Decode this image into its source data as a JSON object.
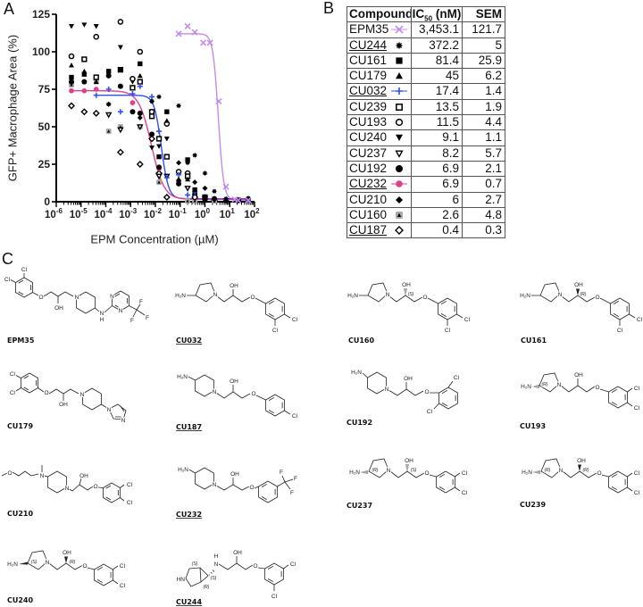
{
  "panels": {
    "a": "A",
    "b": "B",
    "c": "C"
  },
  "table": {
    "headers": {
      "compound": "Compound",
      "ic50_main": "IC",
      "ic50_sub": "50",
      "ic50_unit": " (nM)",
      "sem": "SEM"
    },
    "rows": [
      {
        "compound": "EPM35",
        "underlined": false,
        "marker": "x-line",
        "color": "#c58be8",
        "ic50": "3,453.1",
        "sem": "121.7"
      },
      {
        "compound": "CU244",
        "underlined": true,
        "marker": "asterisk",
        "color": "#000000",
        "ic50": "372.2",
        "sem": "5"
      },
      {
        "compound": "CU161",
        "underlined": false,
        "marker": "square-filled",
        "color": "#000000",
        "ic50": "81.4",
        "sem": "25.9"
      },
      {
        "compound": "CU179",
        "underlined": false,
        "marker": "triangle-filled",
        "color": "#000000",
        "ic50": "45",
        "sem": "6.2"
      },
      {
        "compound": "CU032",
        "underlined": true,
        "marker": "plus-line",
        "color": "#3050f0",
        "ic50": "17.4",
        "sem": "1.4"
      },
      {
        "compound": "CU239",
        "underlined": false,
        "marker": "square-open",
        "color": "#000000",
        "ic50": "13.5",
        "sem": "1.9"
      },
      {
        "compound": "CU193",
        "underlined": false,
        "marker": "circle-open",
        "color": "#000000",
        "ic50": "11.5",
        "sem": "4.4"
      },
      {
        "compound": "CU240",
        "underlined": false,
        "marker": "triangle-down-filled",
        "color": "#000000",
        "ic50": "9.1",
        "sem": "1.1"
      },
      {
        "compound": "CU237",
        "underlined": false,
        "marker": "triangle-down-open",
        "color": "#000000",
        "ic50": "8.2",
        "sem": "5.7"
      },
      {
        "compound": "CU192",
        "underlined": false,
        "marker": "circle-filled",
        "color": "#000000",
        "ic50": "6.9",
        "sem": "2.1"
      },
      {
        "compound": "CU232",
        "underlined": true,
        "marker": "circle-line",
        "color": "#e0408a",
        "ic50": "6.9",
        "sem": "0.7"
      },
      {
        "compound": "CU210",
        "underlined": false,
        "marker": "diamond-filled",
        "color": "#000000",
        "ic50": "6",
        "sem": "2.7"
      },
      {
        "compound": "CU160",
        "underlined": false,
        "marker": "triangle-grey",
        "color": "#000000",
        "ic50": "2.6",
        "sem": "4.8"
      },
      {
        "compound": "CU187",
        "underlined": true,
        "marker": "diamond-open",
        "color": "#000000",
        "ic50": "0.4",
        "sem": "0.3"
      }
    ]
  },
  "structures": [
    {
      "name": "EPM35",
      "underlined": false,
      "atoms": [
        "Cl",
        "Cl",
        "O",
        "OH",
        "N",
        "N",
        "H",
        "N",
        "N",
        "F",
        "F",
        "F"
      ]
    },
    {
      "name": "CU032",
      "underlined": true,
      "atoms": [
        "H₂N",
        "N",
        "OH",
        "O",
        "Cl",
        "Cl"
      ]
    },
    {
      "name": "CU160",
      "underlined": false,
      "atoms": [
        "H₂N",
        "N",
        "OH",
        "(S)",
        "O",
        "Cl",
        "Cl"
      ]
    },
    {
      "name": "CU161",
      "underlined": false,
      "atoms": [
        "H₂N",
        "N",
        "OH",
        "(R)",
        "O",
        "Cl",
        "Cl"
      ]
    },
    {
      "name": "CU179",
      "underlined": false,
      "atoms": [
        "Cl",
        "Cl",
        "O",
        "OH",
        "N",
        "N",
        "N"
      ]
    },
    {
      "name": "CU187",
      "underlined": true,
      "atoms": [
        "H₂N",
        "N",
        "OH",
        "O",
        "Cl"
      ]
    },
    {
      "name": "CU192",
      "underlined": false,
      "atoms": [
        "H₂N",
        "N",
        "OH",
        "O",
        "Cl",
        "Cl"
      ]
    },
    {
      "name": "CU193",
      "underlined": false,
      "atoms": [
        "H₂N",
        "(R)",
        "N",
        "OH",
        "O",
        "Cl",
        "Cl"
      ]
    },
    {
      "name": "CU210",
      "underlined": false,
      "atoms": [
        "O",
        "N",
        "N",
        "OH",
        "O",
        "Cl",
        "Cl"
      ]
    },
    {
      "name": "CU232",
      "underlined": true,
      "atoms": [
        "H₂N",
        "N",
        "OH",
        "O",
        "F",
        "F",
        "F"
      ]
    },
    {
      "name": "CU237",
      "underlined": false,
      "atoms": [
        "H₂N",
        "(R)",
        "N",
        "OH",
        "(S)",
        "O",
        "Cl",
        "Cl"
      ]
    },
    {
      "name": "CU239",
      "underlined": false,
      "atoms": [
        "H₂N",
        "(R)",
        "N",
        "OH",
        "(R)",
        "O",
        "Cl",
        "Cl"
      ]
    },
    {
      "name": "CU240",
      "underlined": false,
      "atoms": [
        "H₂N",
        "(S)",
        "N",
        "OH",
        "(R)",
        "O",
        "Cl",
        "Cl"
      ]
    },
    {
      "name": "CU244",
      "underlined": true,
      "atoms": [
        "HN",
        "(S)",
        "(S)",
        "(R)",
        "H",
        "N",
        "OH",
        "O",
        "Cl",
        "Cl"
      ]
    }
  ],
  "chart_data": {
    "type": "scatter",
    "title": "",
    "xlabel": "EPM Concentration (µM)",
    "ylabel": "GFP+ Macrophage Area (%)",
    "xscale": "log",
    "xlim": [
      1e-06,
      100
    ],
    "ylim": [
      0,
      125
    ],
    "xtick_base": "10",
    "xtick_exponents": [
      "-6",
      "-5",
      "-4",
      "-3",
      "-2",
      "-1",
      "0",
      "1",
      "2"
    ],
    "yticks": [
      0,
      25,
      50,
      75,
      100,
      125
    ],
    "grid": false,
    "legend_position": "separate table (panel B)",
    "series": [
      {
        "name": "EPM35",
        "marker": "x-line",
        "color": "#c58be8",
        "points": [
          [
            0.087,
            112
          ],
          [
            0.2,
            117
          ],
          [
            0.39,
            113
          ],
          [
            0.85,
            106
          ],
          [
            1.6,
            106
          ],
          [
            3.6,
            67
          ],
          [
            7.1,
            10
          ],
          [
            16,
            1.5
          ],
          [
            22,
            1
          ],
          [
            56,
            1
          ]
        ],
        "fit": {
          "top": 112,
          "bottom": 1,
          "ic50_uM": 3.45,
          "hill": 4
        }
      },
      {
        "name": "CU244",
        "marker": "asterisk",
        "color": "#000000",
        "points": [
          [
            4.1e-06,
            80
          ],
          [
            1.35e-05,
            80
          ],
          [
            0.00013,
            65
          ],
          [
            0.0012,
            60
          ],
          [
            0.0072,
            67
          ],
          [
            0.014,
            70
          ],
          [
            0.087,
            64
          ],
          [
            0.2,
            26
          ],
          [
            0.39,
            31
          ],
          [
            1.0,
            19
          ],
          [
            2.4,
            7
          ],
          [
            7.1,
            2
          ],
          [
            56,
            2
          ]
        ]
      },
      {
        "name": "CU161",
        "marker": "square-filled",
        "color": "#000000",
        "points": [
          [
            4.1e-06,
            83
          ],
          [
            1.35e-05,
            85
          ],
          [
            0.00013,
            87
          ],
          [
            0.00039,
            88
          ],
          [
            0.0024,
            92
          ],
          [
            0.014,
            30
          ],
          [
            0.029,
            60
          ],
          [
            0.2,
            28
          ],
          [
            0.39,
            8
          ],
          [
            1.0,
            3
          ],
          [
            22,
            1
          ]
        ]
      },
      {
        "name": "CU179",
        "marker": "triangle-filled",
        "color": "#000000",
        "points": [
          [
            4.1e-06,
            91
          ],
          [
            1.35e-05,
            87
          ],
          [
            4.1e-05,
            80
          ],
          [
            0.00013,
            85
          ],
          [
            0.0024,
            84
          ],
          [
            0.029,
            54
          ],
          [
            0.087,
            15
          ],
          [
            0.2,
            15
          ],
          [
            1.0,
            2
          ],
          [
            7.1,
            1
          ]
        ]
      },
      {
        "name": "CU032",
        "marker": "plus-line",
        "color": "#3050f0",
        "points": [
          [
            4.1e-05,
            71
          ],
          [
            0.00013,
            75
          ],
          [
            0.00039,
            60
          ],
          [
            0.0012,
            72
          ],
          [
            0.0024,
            77
          ],
          [
            0.0072,
            70
          ],
          [
            0.014,
            47
          ],
          [
            0.029,
            16
          ],
          [
            0.087,
            18
          ],
          [
            0.2,
            4.5
          ],
          [
            0.39,
            6.5
          ],
          [
            1.0,
            3.4
          ],
          [
            7.1,
            1.4
          ],
          [
            56,
            1
          ]
        ],
        "fit": {
          "top": 71,
          "bottom": 2,
          "ic50_uM": 0.0174,
          "hill": 3
        }
      },
      {
        "name": "CU239",
        "marker": "square-open",
        "color": "#000000",
        "points": [
          [
            1.35e-05,
            95
          ],
          [
            4.1e-05,
            83
          ],
          [
            0.00039,
            88
          ],
          [
            0.0012,
            76
          ],
          [
            0.0024,
            80
          ],
          [
            0.0072,
            57
          ],
          [
            0.014,
            42
          ],
          [
            0.029,
            30
          ],
          [
            0.2,
            17
          ],
          [
            1.0,
            3
          ],
          [
            22,
            1
          ]
        ]
      },
      {
        "name": "CU193",
        "marker": "circle-open",
        "color": "#000000",
        "points": [
          [
            4.1e-06,
            97
          ],
          [
            4.1e-05,
            110
          ],
          [
            0.00039,
            120
          ],
          [
            0.0012,
            82
          ],
          [
            0.0024,
            100
          ],
          [
            0.0072,
            60
          ],
          [
            0.029,
            52
          ],
          [
            0.087,
            20
          ],
          [
            0.2,
            19
          ],
          [
            0.39,
            3
          ],
          [
            7.1,
            1
          ]
        ]
      },
      {
        "name": "CU240",
        "marker": "triangle-down-filled",
        "color": "#000000",
        "points": [
          [
            4.1e-06,
            117
          ],
          [
            1.35e-05,
            118
          ],
          [
            4.1e-05,
            117
          ],
          [
            0.00039,
            103
          ],
          [
            0.0012,
            80
          ],
          [
            0.0072,
            36
          ],
          [
            0.014,
            37
          ],
          [
            0.029,
            42
          ],
          [
            0.087,
            13
          ],
          [
            0.39,
            2
          ],
          [
            2.4,
            1
          ]
        ]
      },
      {
        "name": "CU237",
        "marker": "triangle-down-open",
        "color": "#000000",
        "points": [
          [
            0.00013,
            58
          ],
          [
            0.00039,
            48
          ],
          [
            0.0024,
            50
          ],
          [
            0.0072,
            60
          ],
          [
            0.014,
            17
          ],
          [
            0.029,
            17
          ],
          [
            0.2,
            9
          ],
          [
            1.0,
            2
          ]
        ]
      },
      {
        "name": "CU192",
        "marker": "circle-filled",
        "color": "#000000",
        "points": [
          [
            4.1e-06,
            80
          ],
          [
            1.35e-05,
            80
          ],
          [
            0.00013,
            84
          ],
          [
            0.00039,
            77
          ],
          [
            0.0012,
            60
          ],
          [
            0.0024,
            59
          ],
          [
            0.0072,
            45
          ],
          [
            0.014,
            23
          ],
          [
            0.087,
            12
          ],
          [
            0.39,
            5
          ],
          [
            2.4,
            2
          ],
          [
            56,
            2
          ]
        ]
      },
      {
        "name": "CU232",
        "marker": "circle-line",
        "color": "#e0408a",
        "points": [
          [
            4.1e-06,
            74
          ],
          [
            1.35e-05,
            74
          ],
          [
            4.1e-05,
            75
          ],
          [
            0.0012,
            66
          ],
          [
            0.0072,
            45
          ],
          [
            0.014,
            22
          ],
          [
            0.087,
            14
          ],
          [
            0.39,
            3
          ],
          [
            2.4,
            2
          ],
          [
            22,
            1
          ],
          [
            56,
            1
          ]
        ],
        "fit": {
          "top": 74,
          "bottom": 1.5,
          "ic50_uM": 0.0069,
          "hill": 1.7
        }
      },
      {
        "name": "CU210",
        "marker": "diamond-filled",
        "color": "#000000",
        "points": [
          [
            0.00013,
            65
          ],
          [
            0.0012,
            66
          ],
          [
            0.0024,
            56
          ],
          [
            0.0072,
            67
          ],
          [
            0.014,
            23
          ],
          [
            0.087,
            26
          ],
          [
            0.39,
            13
          ],
          [
            1.0,
            9
          ],
          [
            56,
            1
          ]
        ]
      },
      {
        "name": "CU160",
        "marker": "triangle-grey",
        "color": "#000000",
        "points": [
          [
            4.1e-06,
            78
          ],
          [
            4.1e-05,
            80
          ],
          [
            0.00013,
            47
          ],
          [
            0.00039,
            50
          ],
          [
            0.0024,
            50
          ],
          [
            0.014,
            13
          ],
          [
            0.2,
            0.5
          ],
          [
            0.39,
            0.5
          ],
          [
            2.4,
            0.5
          ]
        ]
      },
      {
        "name": "CU187",
        "marker": "diamond-open",
        "color": "#000000",
        "points": [
          [
            4.1e-06,
            64
          ],
          [
            1.35e-05,
            60
          ],
          [
            4.1e-05,
            59
          ],
          [
            0.00039,
            33
          ],
          [
            0.0024,
            25
          ],
          [
            0.0072,
            42
          ],
          [
            0.014,
            19
          ],
          [
            0.029,
            3
          ],
          [
            0.39,
            3
          ],
          [
            2.4,
            1
          ]
        ]
      }
    ]
  }
}
